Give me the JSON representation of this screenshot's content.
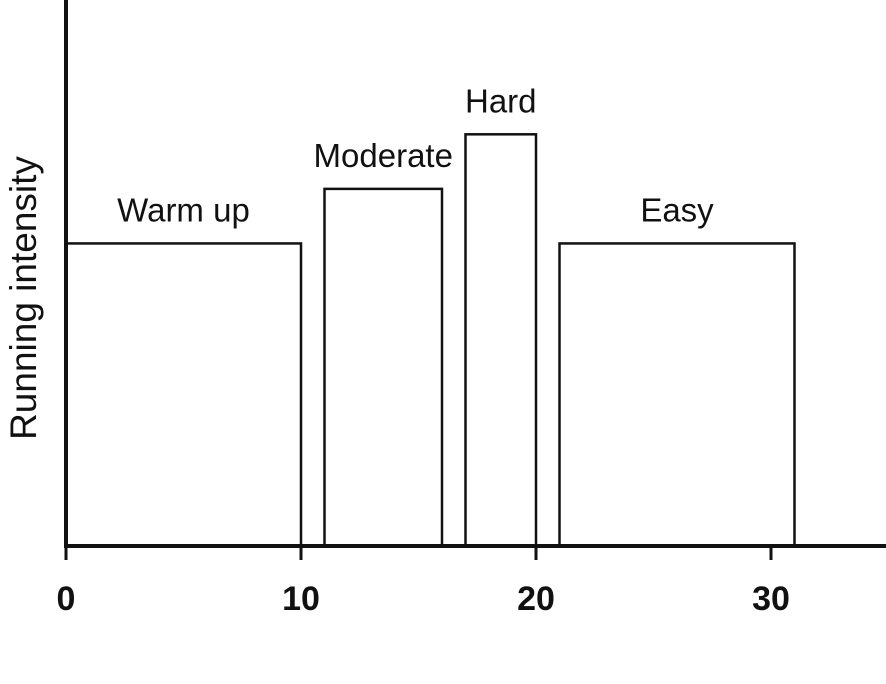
{
  "chart_data": {
    "type": "bar",
    "ylabel": "Running intensity",
    "xlabel": "",
    "xlim": [
      0,
      35
    ],
    "ylim": [
      0,
      10
    ],
    "x_ticks": [
      0,
      10,
      20,
      30
    ],
    "x_tick_labels": [
      "0",
      "10",
      "20",
      "30"
    ],
    "bars": [
      {
        "label": "Warm up",
        "x_start": 0,
        "x_end": 10,
        "value": 6.1
      },
      {
        "label": "Moderate",
        "x_start": 11,
        "x_end": 16,
        "value": 7.2
      },
      {
        "label": "Hard",
        "x_start": 17,
        "x_end": 20,
        "value": 8.3
      },
      {
        "label": "Easy",
        "x_start": 21,
        "x_end": 31,
        "value": 6.1
      }
    ],
    "grid": false
  }
}
